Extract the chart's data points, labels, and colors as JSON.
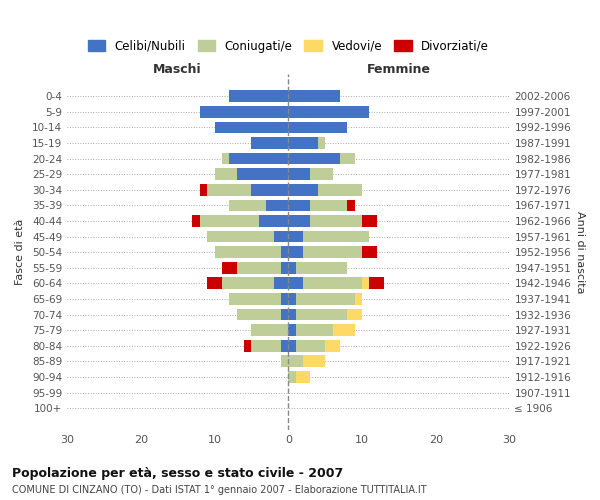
{
  "age_groups": [
    "100+",
    "95-99",
    "90-94",
    "85-89",
    "80-84",
    "75-79",
    "70-74",
    "65-69",
    "60-64",
    "55-59",
    "50-54",
    "45-49",
    "40-44",
    "35-39",
    "30-34",
    "25-29",
    "20-24",
    "15-19",
    "10-14",
    "5-9",
    "0-4"
  ],
  "birth_years": [
    "≤ 1906",
    "1907-1911",
    "1912-1916",
    "1917-1921",
    "1922-1926",
    "1927-1931",
    "1932-1936",
    "1937-1941",
    "1942-1946",
    "1947-1951",
    "1952-1956",
    "1957-1961",
    "1962-1966",
    "1967-1971",
    "1972-1976",
    "1977-1981",
    "1982-1986",
    "1987-1991",
    "1992-1996",
    "1997-2001",
    "2002-2006"
  ],
  "males": {
    "celibi": [
      0,
      0,
      0,
      0,
      1,
      0,
      1,
      1,
      2,
      1,
      1,
      2,
      4,
      3,
      5,
      7,
      8,
      5,
      10,
      12,
      8
    ],
    "coniugati": [
      0,
      0,
      0,
      1,
      4,
      5,
      6,
      7,
      7,
      6,
      9,
      9,
      8,
      5,
      6,
      3,
      1,
      0,
      0,
      0,
      0
    ],
    "vedovi": [
      0,
      0,
      0,
      0,
      0,
      0,
      0,
      0,
      0,
      0,
      0,
      0,
      0,
      0,
      0,
      0,
      0,
      0,
      0,
      0,
      0
    ],
    "divorziati": [
      0,
      0,
      0,
      0,
      1,
      0,
      0,
      0,
      2,
      2,
      0,
      0,
      1,
      0,
      1,
      0,
      0,
      0,
      0,
      0,
      0
    ]
  },
  "females": {
    "nubili": [
      0,
      0,
      0,
      0,
      1,
      1,
      1,
      1,
      2,
      1,
      2,
      2,
      3,
      3,
      4,
      3,
      7,
      4,
      8,
      11,
      7
    ],
    "coniugate": [
      0,
      0,
      1,
      2,
      4,
      5,
      7,
      8,
      8,
      7,
      8,
      9,
      7,
      5,
      6,
      3,
      2,
      1,
      0,
      0,
      0
    ],
    "vedove": [
      0,
      0,
      2,
      3,
      2,
      3,
      2,
      1,
      1,
      0,
      0,
      0,
      0,
      0,
      0,
      0,
      0,
      0,
      0,
      0,
      0
    ],
    "divorziate": [
      0,
      0,
      0,
      0,
      0,
      0,
      0,
      0,
      2,
      0,
      2,
      0,
      2,
      1,
      0,
      0,
      0,
      0,
      0,
      0,
      0
    ]
  },
  "colors": {
    "celibi_nubili": "#4472C4",
    "coniugati": "#BFCE99",
    "vedovi": "#FFD966",
    "divorziati": "#CC0000"
  },
  "title": "Popolazione per età, sesso e stato civile - 2007",
  "subtitle": "COMUNE DI CINZANO (TO) - Dati ISTAT 1° gennaio 2007 - Elaborazione TUTTITALIA.IT",
  "xlabel_left": "Maschi",
  "xlabel_right": "Femmine",
  "ylabel": "Fasce di età",
  "ylabel_right": "Anni di nascita",
  "xlim": 30,
  "legend_labels": [
    "Celibi/Nubili",
    "Coniugati/e",
    "Vedovi/e",
    "Divorziati/e"
  ],
  "background_color": "#FFFFFF"
}
